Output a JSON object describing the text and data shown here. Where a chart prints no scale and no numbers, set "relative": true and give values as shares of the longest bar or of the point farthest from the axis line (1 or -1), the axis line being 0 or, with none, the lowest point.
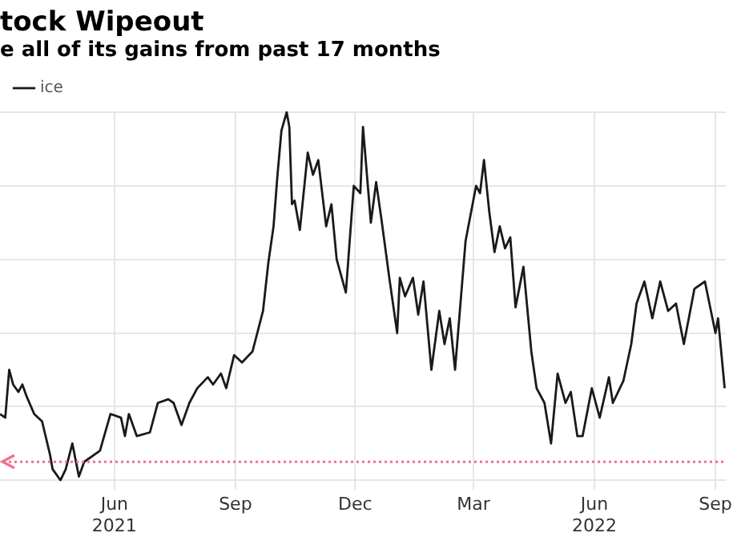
{
  "chart_data": {
    "type": "line",
    "title": "tock Wipeout",
    "subtitle": "e all of its gains from past 17 months",
    "relative": true,
    "x": [
      "2021-03-06",
      "2021-03-10",
      "2021-03-13",
      "2021-03-16",
      "2021-03-20",
      "2021-03-23",
      "2021-03-26",
      "2021-04-01",
      "2021-04-07",
      "2021-04-13",
      "2021-04-15",
      "2021-04-21",
      "2021-04-25",
      "2021-04-30",
      "2021-05-05",
      "2021-05-09",
      "2021-05-21",
      "2021-05-29",
      "2021-06-06",
      "2021-06-09",
      "2021-06-12",
      "2021-06-18",
      "2021-06-28",
      "2021-07-04",
      "2021-07-12",
      "2021-07-16",
      "2021-07-22",
      "2021-07-28",
      "2021-08-03",
      "2021-08-11",
      "2021-08-15",
      "2021-08-21",
      "2021-08-25",
      "2021-08-31",
      "2021-09-06",
      "2021-09-14",
      "2021-09-22",
      "2021-09-26",
      "2021-09-30",
      "2021-10-03",
      "2021-10-06",
      "2021-10-10",
      "2021-10-12",
      "2021-10-14",
      "2021-10-16",
      "2021-10-20",
      "2021-10-26",
      "2021-10-30",
      "2021-11-03",
      "2021-11-09",
      "2021-11-13",
      "2021-11-17",
      "2021-11-24",
      "2021-11-30",
      "2021-12-05",
      "2021-12-07",
      "2021-12-13",
      "2021-12-17",
      "2021-12-21",
      "2021-12-27",
      "2022-01-02",
      "2022-01-04",
      "2022-01-08",
      "2022-01-14",
      "2022-01-18",
      "2022-01-22",
      "2022-01-28",
      "2022-02-03",
      "2022-02-07",
      "2022-02-11",
      "2022-02-15",
      "2022-02-23",
      "2022-03-03",
      "2022-03-06",
      "2022-03-09",
      "2022-03-13",
      "2022-03-17",
      "2022-03-21",
      "2022-03-25",
      "2022-03-29",
      "2022-04-02",
      "2022-04-08",
      "2022-04-14",
      "2022-04-18",
      "2022-04-24",
      "2022-04-29",
      "2022-05-04",
      "2022-05-10",
      "2022-05-14",
      "2022-05-19",
      "2022-05-23",
      "2022-05-30",
      "2022-06-05",
      "2022-06-12",
      "2022-06-15",
      "2022-06-23",
      "2022-06-29",
      "2022-07-03",
      "2022-07-09",
      "2022-07-15",
      "2022-07-21",
      "2022-07-27",
      "2022-08-02",
      "2022-08-08",
      "2022-08-16",
      "2022-08-24",
      "2022-09-01",
      "2022-09-03",
      "2022-09-08"
    ],
    "series": [
      {
        "name": "ice",
        "color": "#1a1a1a",
        "values": [
          0.18,
          0.17,
          0.3,
          0.26,
          0.24,
          0.26,
          0.23,
          0.18,
          0.16,
          0.07,
          0.03,
          0,
          0.03,
          0.1,
          0.01,
          0.05,
          0.08,
          0.18,
          0.17,
          0.12,
          0.18,
          0.12,
          0.13,
          0.21,
          0.22,
          0.21,
          0.15,
          0.21,
          0.25,
          0.28,
          0.26,
          0.29,
          0.25,
          0.34,
          0.32,
          0.35,
          0.46,
          0.59,
          0.69,
          0.83,
          0.95,
          1,
          0.96,
          0.75,
          0.76,
          0.68,
          0.89,
          0.83,
          0.87,
          0.69,
          0.75,
          0.6,
          0.51,
          0.8,
          0.78,
          0.96,
          0.7,
          0.81,
          0.71,
          0.55,
          0.4,
          0.55,
          0.5,
          0.55,
          0.45,
          0.54,
          0.3,
          0.46,
          0.37,
          0.44,
          0.3,
          0.65,
          0.8,
          0.78,
          0.87,
          0.73,
          0.62,
          0.69,
          0.63,
          0.66,
          0.47,
          0.58,
          0.35,
          0.25,
          0.21,
          0.1,
          0.29,
          0.21,
          0.24,
          0.12,
          0.12,
          0.25,
          0.17,
          0.28,
          0.21,
          0.27,
          0.37,
          0.48,
          0.54,
          0.44,
          0.54,
          0.46,
          0.48,
          0.37,
          0.52,
          0.54,
          0.4,
          0.44,
          0.25
        ]
      }
    ],
    "xlim": [
      "2021-03-06",
      "2022-09-09"
    ],
    "xticks": [
      {
        "value": "2021-06-01",
        "label": "Jun 2021"
      },
      {
        "value": "2021-09-01",
        "label": "Sep"
      },
      {
        "value": "2021-12-01",
        "label": "Dec"
      },
      {
        "value": "2022-03-01",
        "label": "Mar"
      },
      {
        "value": "2022-06-01",
        "label": "Jun 2022"
      },
      {
        "value": "2022-09-01",
        "label": "Sep"
      }
    ],
    "ref_lines": [
      {
        "axis": "y",
        "value": 0.05,
        "color": "#f07090",
        "line_style": "dotted"
      }
    ],
    "grid": true,
    "legend": "top left",
    "marker": "none",
    "line_style": "solid"
  }
}
